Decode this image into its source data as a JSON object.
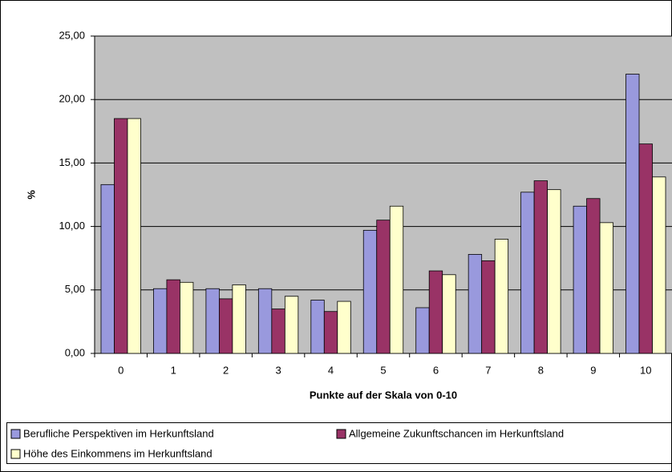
{
  "chart_data": {
    "type": "bar",
    "ylabel": "%",
    "xlabel": "Punkte auf der Skala von 0-10",
    "categories": [
      "0",
      "1",
      "2",
      "3",
      "4",
      "5",
      "6",
      "7",
      "8",
      "9",
      "10"
    ],
    "series": [
      {
        "name": "Berufliche Perspektiven im Herkunftsland",
        "color": "#9999dd",
        "values": [
          13.3,
          5.1,
          5.1,
          5.1,
          4.2,
          9.7,
          3.6,
          7.8,
          12.7,
          11.6,
          22.0
        ]
      },
      {
        "name": "Allgemeine Zukunftschancen im Herkunftsland",
        "color": "#993366",
        "values": [
          18.5,
          5.8,
          4.3,
          3.5,
          3.3,
          10.5,
          6.5,
          7.3,
          13.6,
          12.2,
          16.5
        ]
      },
      {
        "name": "Höhe des Einkommens im Herkunftsland",
        "color": "#ffffcc",
        "values": [
          18.5,
          5.6,
          5.4,
          4.5,
          4.1,
          11.6,
          6.2,
          9.0,
          12.9,
          10.3,
          13.9
        ]
      }
    ],
    "ylim": [
      0,
      25
    ],
    "yticks": [
      {
        "value": 0,
        "label": "0,00"
      },
      {
        "value": 5,
        "label": "5,00"
      },
      {
        "value": 10,
        "label": "10,00"
      },
      {
        "value": 15,
        "label": "15,00"
      },
      {
        "value": 20,
        "label": "20,00"
      },
      {
        "value": 25,
        "label": "25,00"
      }
    ],
    "grid": true
  }
}
